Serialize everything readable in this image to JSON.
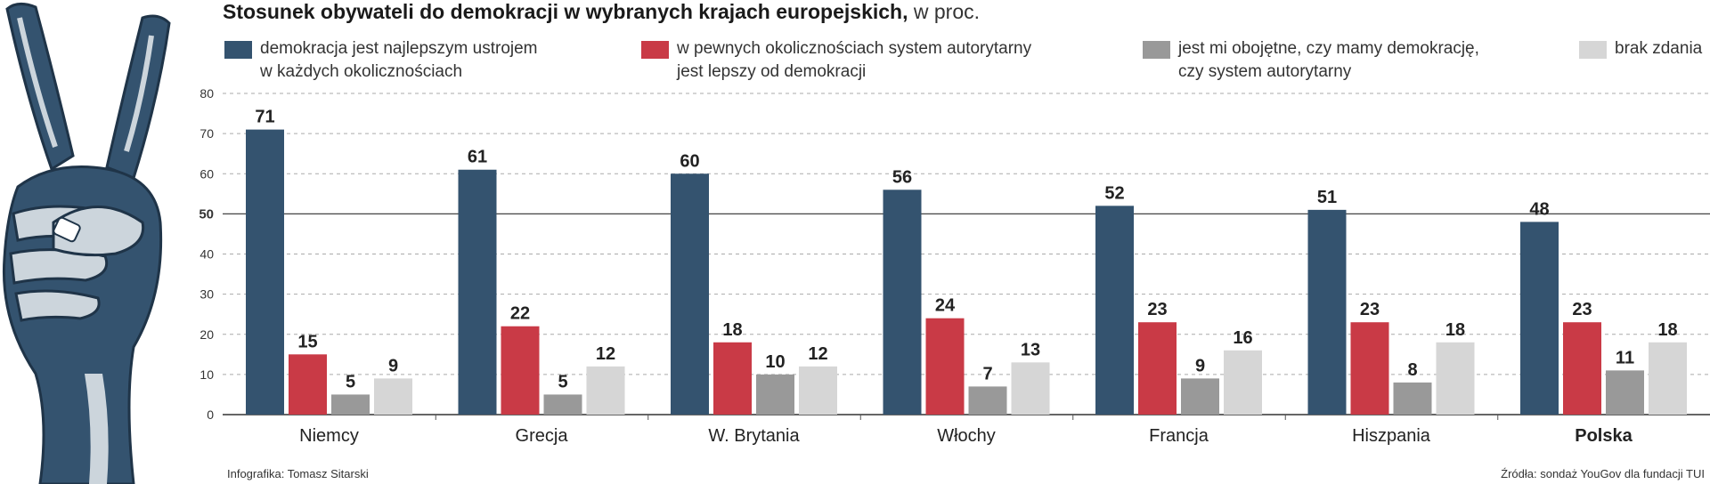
{
  "title": {
    "bold": "Stosunek obywateli do demokracji w wybranych krajach europejskich,",
    "light": "w proc."
  },
  "colors": {
    "dark_blue": "#34536f",
    "red": "#c93a46",
    "gray": "#999999",
    "light_gray": "#d6d6d6",
    "hand_fill": "#34536f",
    "hand_light": "#ccd5dc"
  },
  "legend": [
    {
      "lines": [
        "demokracja jest najlepszym ustrojem",
        "w każdych okolicznościach"
      ],
      "color": "#34536f"
    },
    {
      "lines": [
        "w pewnych okolicznościach system autorytarny",
        "jest lepszy od demokracji"
      ],
      "color": "#c93a46"
    },
    {
      "lines": [
        "jest mi obojętne, czy mamy demokrację,",
        "czy system autorytarny"
      ],
      "color": "#999999"
    },
    {
      "lines": [
        "brak zdania"
      ],
      "color": "#d6d6d6"
    }
  ],
  "chart_data": {
    "type": "bar",
    "title": "Stosunek obywateli do demokracji w wybranych krajach europejskich, w proc.",
    "categories": [
      "Niemcy",
      "Grecja",
      "W. Brytania",
      "Włochy",
      "Francja",
      "Hiszpania",
      "Polska"
    ],
    "highlighted_category": "Polska",
    "series": [
      {
        "name": "demokracja jest najlepszym ustrojem w każdych okolicznościach",
        "color": "#34536f",
        "values": [
          71,
          61,
          60,
          56,
          52,
          51,
          48
        ]
      },
      {
        "name": "w pewnych okolicznościach system autorytarny jest lepszy od demokracji",
        "color": "#c93a46",
        "values": [
          15,
          22,
          18,
          24,
          23,
          23,
          23
        ]
      },
      {
        "name": "jest mi obojętne, czy mamy demokrację, czy system autorytarny",
        "color": "#999999",
        "values": [
          5,
          5,
          10,
          7,
          9,
          8,
          11
        ]
      },
      {
        "name": "brak zdania",
        "color": "#d6d6d6",
        "values": [
          9,
          12,
          12,
          13,
          16,
          18,
          18
        ]
      }
    ],
    "yticks": [
      0,
      10,
      20,
      30,
      40,
      50,
      60,
      70,
      80
    ],
    "ylim": [
      0,
      80
    ],
    "reference_line": 50,
    "grid": true,
    "legend_position": "top"
  },
  "footer": {
    "credit": "Infografika: Tomasz Sitarski",
    "source": "Źródła: sondaż YouGov dla fundacji TUI"
  }
}
